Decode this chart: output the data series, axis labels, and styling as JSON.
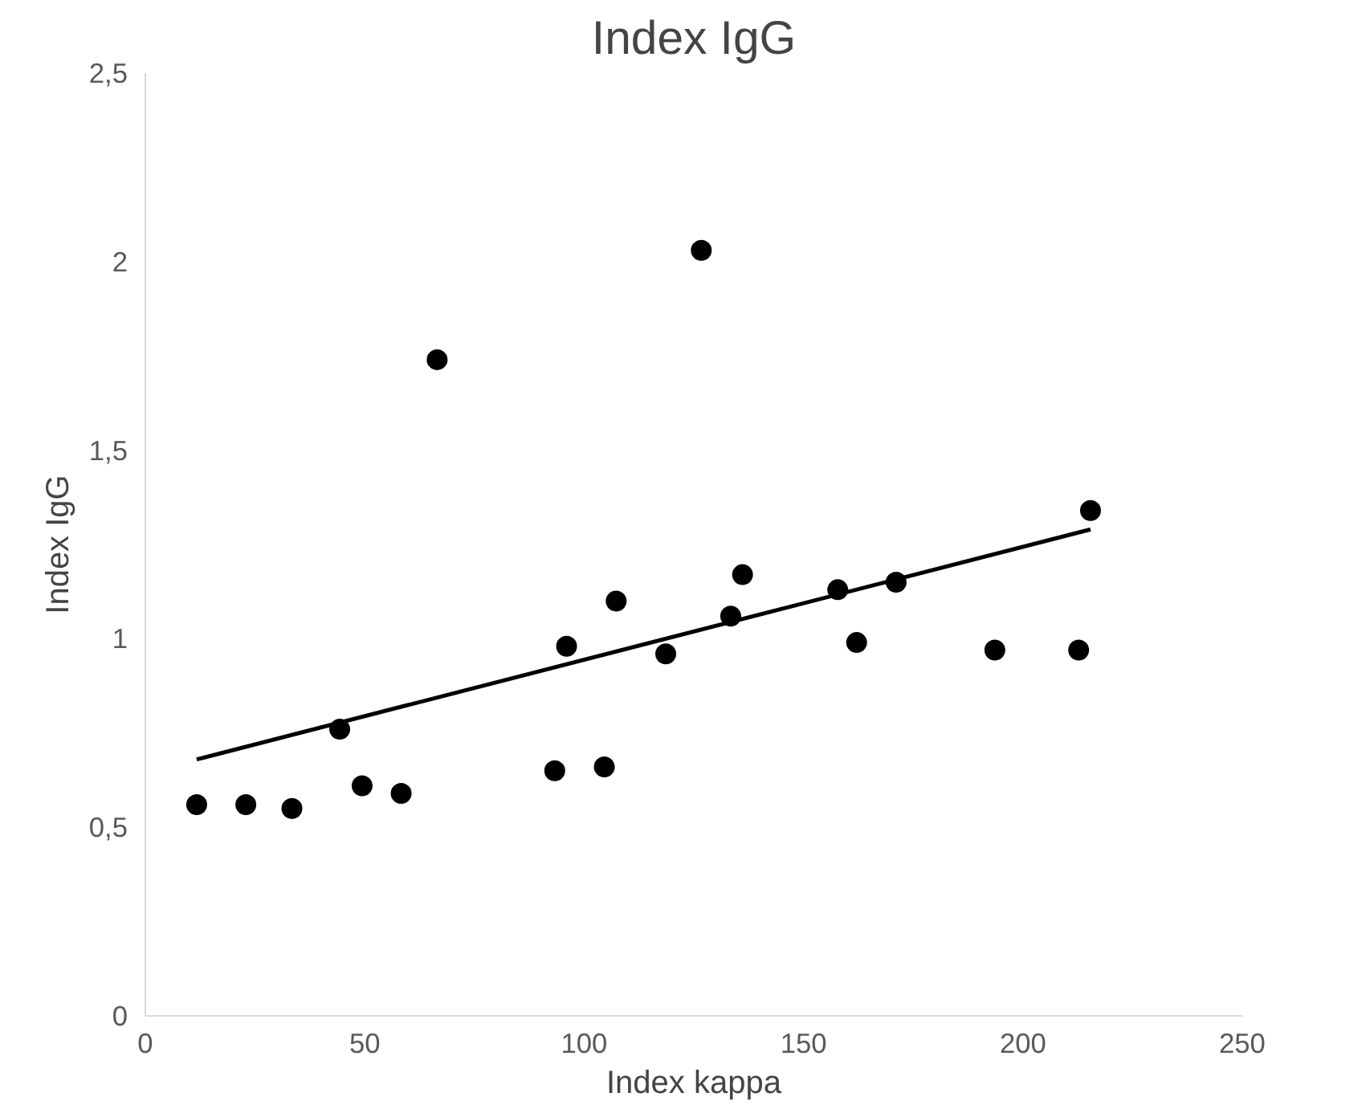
{
  "chart_data": {
    "type": "scatter",
    "title": "Index IgG",
    "xlabel": "Index kappa",
    "ylabel": "Index IgG",
    "grid": false,
    "xlim": [
      0,
      250
    ],
    "xticks": [
      0,
      50,
      100,
      150,
      200,
      250
    ],
    "ylim": [
      0,
      2.5
    ],
    "yticks": [
      0,
      {
        "value": 0.5,
        "label": "0,5"
      },
      1,
      {
        "value": 1.5,
        "label": "1,5"
      },
      2,
      {
        "value": 2.5,
        "label": "2,5"
      }
    ],
    "series": [
      {
        "color": "#000000",
        "marker": "circle",
        "x": [
          11.7,
          22.9,
          33.4,
          44.3,
          49.4,
          58.3,
          66.5,
          93.3,
          96.0,
          104.6,
          107.3,
          118.6,
          126.7,
          133.4,
          136.1,
          157.8,
          162.1,
          171.1,
          193.6,
          212.7,
          215.4
        ],
        "values": [
          0.56,
          0.56,
          0.55,
          0.76,
          0.61,
          0.59,
          1.74,
          0.65,
          0.98,
          0.66,
          1.1,
          0.96,
          2.03,
          1.06,
          1.17,
          1.13,
          0.99,
          1.15,
          0.97,
          0.97,
          1.34
        ]
      },
      {
        "type": "line",
        "color": "#000000",
        "line_style": "solid",
        "x": [
          11.7,
          215.4
        ],
        "values": [
          0.68,
          1.29
        ]
      }
    ]
  }
}
